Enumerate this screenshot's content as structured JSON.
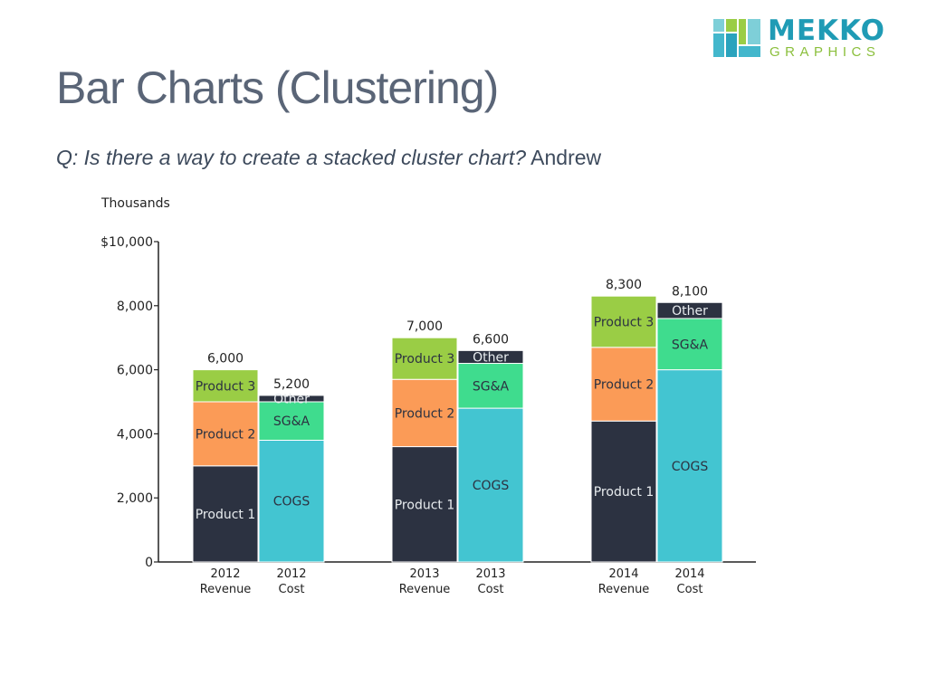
{
  "header": {
    "title": "Bar Charts (Clustering)",
    "question": "Q: Is there a way to create a stacked cluster chart?",
    "author": "Andrew"
  },
  "logo": {
    "word": "MEKKO",
    "sub": "GRAPHICS"
  },
  "colors": {
    "product1": "#2c3241",
    "product2": "#fb9b57",
    "product3": "#9acd45",
    "cogs": "#43c5d1",
    "sga": "#3fdc8e",
    "other": "#2c3241",
    "axis": "#222222",
    "title": "#5a6577"
  },
  "chart_data": {
    "type": "bar",
    "stacked": true,
    "clustered": true,
    "ylabel": "Thousands",
    "ylim": [
      0,
      10000
    ],
    "yticks": [
      {
        "value": 0,
        "label": "0"
      },
      {
        "value": 2000,
        "label": "2,000"
      },
      {
        "value": 4000,
        "label": "4,000"
      },
      {
        "value": 6000,
        "label": "6,000"
      },
      {
        "value": 8000,
        "label": "8,000"
      },
      {
        "value": 10000,
        "label": "$10,000"
      }
    ],
    "bars": [
      {
        "year": "2012",
        "kind": "Revenue",
        "total_label": "6,000",
        "segments": [
          {
            "name": "Product 1",
            "value": 3000,
            "color_key": "product1",
            "light_text": true
          },
          {
            "name": "Product 2",
            "value": 2000,
            "color_key": "product2",
            "light_text": false
          },
          {
            "name": "Product 3",
            "value": 1000,
            "color_key": "product3",
            "light_text": false
          }
        ]
      },
      {
        "year": "2012",
        "kind": "Cost",
        "total_label": "5,200",
        "segments": [
          {
            "name": "COGS",
            "value": 3800,
            "color_key": "cogs",
            "light_text": false
          },
          {
            "name": "SG&A",
            "value": 1200,
            "color_key": "sga",
            "light_text": false
          },
          {
            "name": "Other",
            "value": 200,
            "color_key": "other",
            "light_text": true
          }
        ]
      },
      {
        "year": "2013",
        "kind": "Revenue",
        "total_label": "7,000",
        "segments": [
          {
            "name": "Product 1",
            "value": 3600,
            "color_key": "product1",
            "light_text": true
          },
          {
            "name": "Product 2",
            "value": 2100,
            "color_key": "product2",
            "light_text": false
          },
          {
            "name": "Product 3",
            "value": 1300,
            "color_key": "product3",
            "light_text": false
          }
        ]
      },
      {
        "year": "2013",
        "kind": "Cost",
        "total_label": "6,600",
        "segments": [
          {
            "name": "COGS",
            "value": 4800,
            "color_key": "cogs",
            "light_text": false
          },
          {
            "name": "SG&A",
            "value": 1400,
            "color_key": "sga",
            "light_text": false
          },
          {
            "name": "Other",
            "value": 400,
            "color_key": "other",
            "light_text": true
          }
        ]
      },
      {
        "year": "2014",
        "kind": "Revenue",
        "total_label": "8,300",
        "segments": [
          {
            "name": "Product 1",
            "value": 4400,
            "color_key": "product1",
            "light_text": true
          },
          {
            "name": "Product 2",
            "value": 2300,
            "color_key": "product2",
            "light_text": false
          },
          {
            "name": "Product 3",
            "value": 1600,
            "color_key": "product3",
            "light_text": false
          }
        ]
      },
      {
        "year": "2014",
        "kind": "Cost",
        "total_label": "8,100",
        "segments": [
          {
            "name": "COGS",
            "value": 6000,
            "color_key": "cogs",
            "light_text": false
          },
          {
            "name": "SG&A",
            "value": 1600,
            "color_key": "sga",
            "light_text": false
          },
          {
            "name": "Other",
            "value": 500,
            "color_key": "other",
            "light_text": true
          }
        ]
      }
    ]
  }
}
